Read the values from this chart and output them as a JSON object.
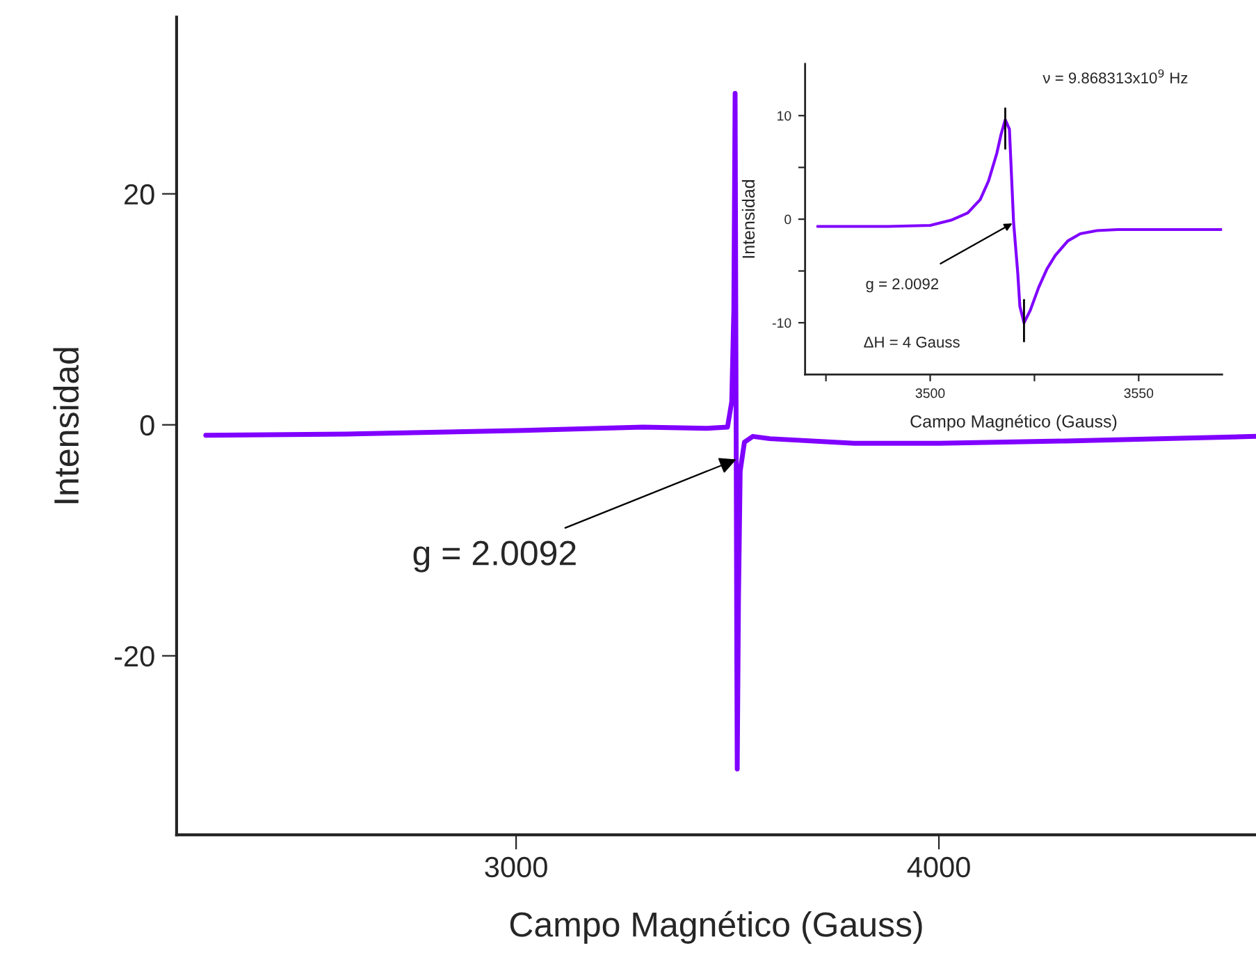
{
  "chart_data": [
    {
      "type": "line",
      "xlabel": "Campo Magnético (Gauss)",
      "ylabel": "Intensidad",
      "xlim": [
        2197,
        4750
      ],
      "ylim": [
        -35.5,
        35.3
      ],
      "xticks": [
        3000,
        4000
      ],
      "yticks": [
        -20,
        0,
        20
      ],
      "grid": false,
      "legend": false,
      "series": [
        {
          "color": "#8000ff",
          "x": [
            2266,
            2600,
            3000,
            3300,
            3450,
            3500,
            3510,
            3515,
            3518,
            3520,
            3522,
            3523,
            3526,
            3530,
            3540,
            3560,
            3600,
            3800,
            4000,
            4300,
            4750
          ],
          "values": [
            -0.9,
            -0.8,
            -0.5,
            -0.2,
            -0.3,
            -0.2,
            2,
            10,
            28.7,
            5,
            -20,
            -29.8,
            -15,
            -4,
            -1.5,
            -1.0,
            -1.2,
            -1.6,
            -1.6,
            -1.4,
            -1.0
          ]
        }
      ],
      "annotations": [
        {
          "text": "g = 2.0092",
          "x": 3520.6,
          "y": -3
        }
      ]
    },
    {
      "type": "line",
      "xlabel": "Campo Magnético (Gauss)",
      "ylabel": "Intensidad",
      "xlim": [
        3470,
        3570
      ],
      "ylim": [
        -15,
        15
      ],
      "xticks": [
        {
          "value": 3475,
          "label": null
        },
        3500,
        {
          "value": 3525,
          "label": null
        },
        3550
      ],
      "yticks": [
        -10,
        {
          "value": -5,
          "label": null
        },
        0,
        {
          "value": 5,
          "label": null
        },
        10
      ],
      "grid": false,
      "legend": false,
      "series": [
        {
          "color": "#8000ff",
          "x": [
            3473,
            3490,
            3500,
            3505,
            3509,
            3512,
            3514,
            3516,
            3517,
            3518,
            3519,
            3520,
            3521,
            3521.5,
            3522.5,
            3524,
            3526,
            3528,
            3530,
            3533,
            3536,
            3540,
            3545,
            3560,
            3570
          ],
          "values": [
            -0.7,
            -0.7,
            -0.6,
            -0.1,
            0.6,
            1.9,
            3.7,
            6.4,
            8.2,
            9.6,
            8.7,
            -0.3,
            -5.2,
            -8.4,
            -10,
            -8.8,
            -6.6,
            -4.8,
            -3.5,
            -2.1,
            -1.4,
            -1.1,
            -1.0,
            -1.0,
            -1.0
          ]
        },
        {
          "color": "#000000",
          "x": [
            3518,
            3518
          ],
          "values": [
            6.8,
            10.7
          ]
        },
        {
          "color": "#000000",
          "x": [
            3522.5,
            3522.5
          ],
          "values": [
            -7.8,
            -11.8
          ]
        }
      ],
      "annotations": [
        {
          "text": "g = 2.0092",
          "x": 3519.7,
          "y": -0.4
        },
        "ν = 9.868313x10$^{9}$ Hz",
        "ΔH = 4 Gauss"
      ]
    }
  ]
}
